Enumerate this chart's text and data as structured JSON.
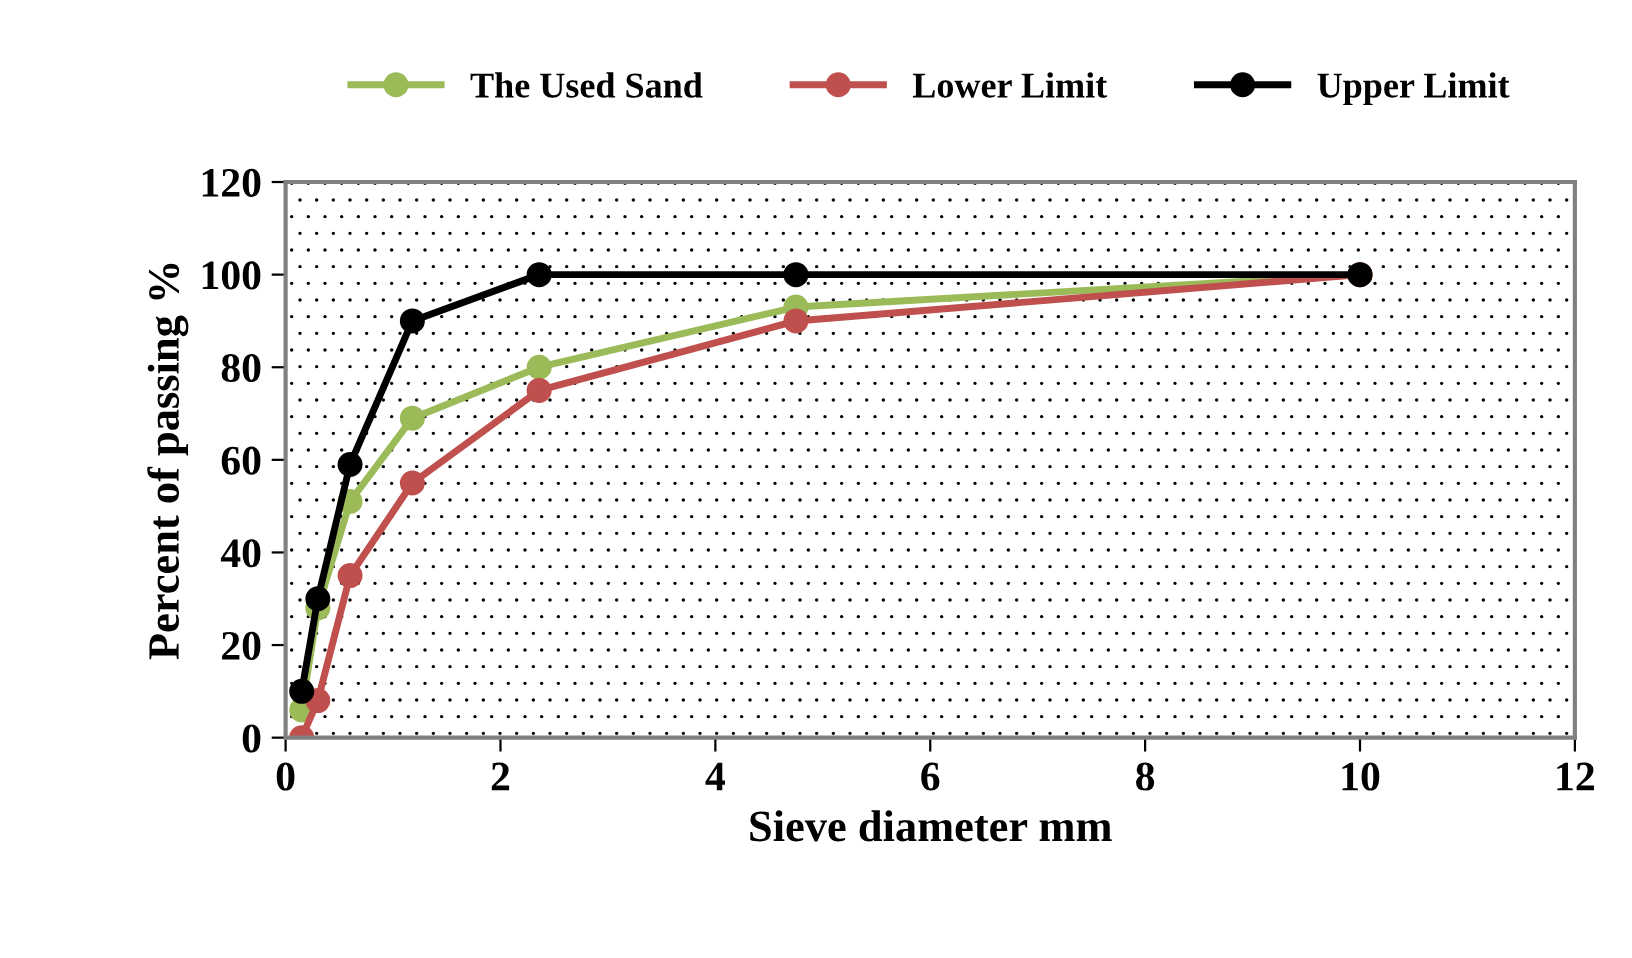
{
  "chart_data": {
    "type": "line",
    "xlabel": "Sieve diameter mm",
    "ylabel": "Percent of passing %",
    "xlim": [
      0,
      12
    ],
    "xticks": [
      0,
      2,
      4,
      6,
      8,
      10,
      12
    ],
    "ylim": [
      0,
      120
    ],
    "yticks": [
      0,
      20,
      40,
      60,
      80,
      100,
      120
    ],
    "grid": false,
    "legend": "top",
    "marker": "circle",
    "line_style": "solid",
    "series": [
      {
        "name": "The Used Sand",
        "color": "#9bbb59",
        "x": [
          0.15,
          0.3,
          0.6,
          1.18,
          2.36,
          4.75,
          10
        ],
        "values": [
          6,
          28,
          51,
          69,
          80,
          93,
          100
        ]
      },
      {
        "name": "Lower Limit",
        "color": "#c0504d",
        "x": [
          0.15,
          0.3,
          0.6,
          1.18,
          2.36,
          4.75,
          10
        ],
        "values": [
          0,
          8,
          35,
          55,
          75,
          90,
          100
        ]
      },
      {
        "name": "Upper Limit",
        "color": "#000000",
        "x": [
          0.15,
          0.3,
          0.6,
          1.18,
          2.36,
          4.75,
          10
        ],
        "values": [
          10,
          30,
          59,
          90,
          100,
          100,
          100
        ]
      }
    ]
  }
}
